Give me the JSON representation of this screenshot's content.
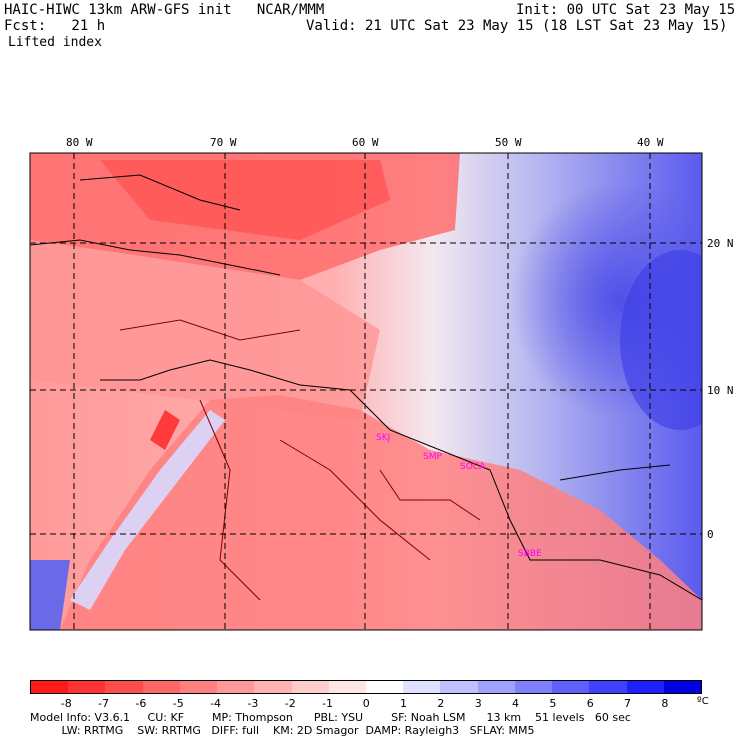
{
  "header": {
    "left_line1": "HAIC-HIWC 13km ARW-GFS init   NCAR/MMM",
    "left_line2": "Fcst:   21 h",
    "right_line1": "Init: 00 UTC Sat 23 May 15",
    "right_line2": "Valid: 21 UTC Sat 23 May 15 (18 LST Sat 23 May 15)",
    "field_name": "Lifted index"
  },
  "axes": {
    "lon_labels": [
      "80 W",
      "70 W",
      "60 W",
      "50 W",
      "40 W"
    ],
    "lat_labels": [
      "20 N",
      "10 N",
      "0"
    ]
  },
  "map_labels": [
    "SKJ",
    "SMP",
    "SOCA",
    "SBBE"
  ],
  "colorbar": {
    "ticks": [
      "-8",
      "-7",
      "-6",
      "-5",
      "-4",
      "-3",
      "-2",
      "-1",
      "0",
      "1",
      "2",
      "3",
      "4",
      "5",
      "6",
      "7",
      "8"
    ],
    "unit": "ºC",
    "colors": [
      "#ff1a1a",
      "#ff3333",
      "#ff4d4d",
      "#ff6666",
      "#ff8080",
      "#ff9999",
      "#ffb3b3",
      "#ffcccc",
      "#ffe6e6",
      "#ffffff",
      "#e0e0ff",
      "#c0c0ff",
      "#a0a0ff",
      "#8080ff",
      "#6060ff",
      "#4040ff",
      "#2020ff",
      "#0000e0"
    ]
  },
  "model_info": {
    "line1": "Model Info: V3.6.1     CU: KF        MP: Thompson      PBL: YSU        SF: Noah LSM      13 km    51 levels   60 sec",
    "line2": "         LW: RRTMG    SW: RRTMG   DIFF: full    KM: 2D Smagor  DAMP: Rayleigh3   SFLAY: MM5"
  }
}
